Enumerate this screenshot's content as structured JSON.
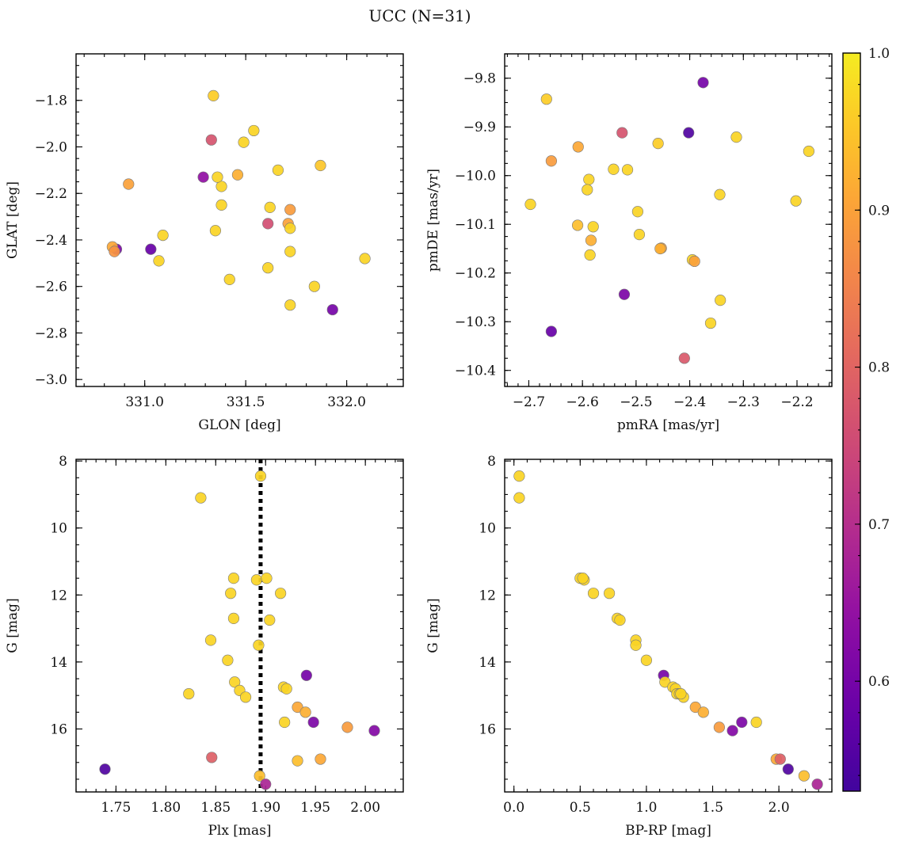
{
  "figure": {
    "title": "UCC (N=31)"
  },
  "chart_data": [
    {
      "type": "scatter",
      "xlabel": "GLON [deg]",
      "ylabel": "GLAT [deg]",
      "xlim": [
        330.66,
        332.28
      ],
      "ylim": [
        -3.03,
        -1.6
      ],
      "xticks": [
        331.0,
        331.5,
        332.0
      ],
      "xticklabels": [
        "331.0",
        "331.5",
        "332.0"
      ],
      "yticks": [
        -3.0,
        -2.8,
        -2.6,
        -2.4,
        -2.2,
        -2.0,
        -1.8
      ],
      "yticklabels": [
        "−3.0",
        "−2.8",
        "−2.6",
        "−2.4",
        "−2.2",
        "−2.0",
        "−1.8"
      ],
      "x": [
        331.34,
        331.33,
        331.54,
        331.49,
        331.29,
        331.38,
        331.36,
        331.46,
        330.92,
        331.38,
        331.66,
        331.72,
        331.62,
        331.71,
        331.87,
        332.09,
        331.61,
        331.35,
        331.72,
        331.84,
        331.09,
        331.03,
        330.86,
        330.84,
        330.85,
        331.07,
        331.72,
        331.61,
        331.42,
        331.72,
        331.93
      ],
      "y": [
        -1.78,
        -1.97,
        -1.93,
        -1.98,
        -2.13,
        -2.17,
        -2.13,
        -2.12,
        -2.16,
        -2.25,
        -2.1,
        -2.27,
        -2.26,
        -2.33,
        -2.08,
        -2.48,
        -2.33,
        -2.36,
        -2.35,
        -2.6,
        -2.38,
        -2.44,
        -2.44,
        -2.43,
        -2.45,
        -2.49,
        -2.45,
        -2.52,
        -2.57,
        -2.68,
        -2.7
      ],
      "c": [
        0.96,
        0.77,
        0.97,
        0.97,
        0.64,
        0.97,
        0.97,
        0.92,
        0.9,
        0.97,
        0.97,
        0.89,
        0.97,
        0.9,
        0.95,
        0.97,
        0.76,
        0.97,
        0.97,
        0.97,
        0.97,
        0.58,
        0.61,
        0.91,
        0.88,
        0.97,
        0.97,
        0.97,
        0.97,
        0.97,
        0.6
      ],
      "colorbar": {
        "label": "",
        "range": [
          0.53,
          1.0
        ]
      }
    },
    {
      "type": "scatter",
      "xlabel": "pmRA [mas/yr]",
      "ylabel": "pmDE [mas/yr]",
      "xlim": [
        -2.745,
        -2.135
      ],
      "ylim": [
        -10.433,
        -9.75
      ],
      "xticks": [
        -2.7,
        -2.6,
        -2.5,
        -2.4,
        -2.3,
        -2.2
      ],
      "xticklabels": [
        "−2.7",
        "−2.6",
        "−2.5",
        "−2.4",
        "−2.3",
        "−2.2"
      ],
      "yticks": [
        -10.4,
        -10.3,
        -10.2,
        -10.1,
        -10.0,
        -9.9,
        -9.8
      ],
      "yticklabels": [
        "−10.4",
        "−10.3",
        "−10.2",
        "−10.1",
        "−10.0",
        "−9.9",
        "−9.8"
      ],
      "x": [
        -2.667,
        -2.526,
        -2.402,
        -2.375,
        -2.459,
        -2.313,
        -2.178,
        -2.608,
        -2.658,
        -2.542,
        -2.516,
        -2.588,
        -2.591,
        -2.344,
        -2.202,
        -2.697,
        -2.609,
        -2.58,
        -2.497,
        -2.494,
        -2.584,
        -2.453,
        -2.455,
        -2.395,
        -2.391,
        -2.586,
        -2.522,
        -2.343,
        -2.361,
        -2.658,
        -2.41
      ],
      "y": [
        -9.843,
        -9.912,
        -9.912,
        -9.809,
        -9.934,
        -9.921,
        -9.95,
        -9.941,
        -9.97,
        -9.987,
        -9.988,
        -10.008,
        -10.029,
        -10.039,
        -10.052,
        -10.059,
        -10.102,
        -10.105,
        -10.074,
        -10.121,
        -10.133,
        -10.149,
        -10.15,
        -10.173,
        -10.176,
        -10.163,
        -10.244,
        -10.256,
        -10.303,
        -10.32,
        -10.375
      ],
      "c": [
        0.96,
        0.77,
        0.55,
        0.6,
        0.96,
        0.97,
        0.97,
        0.91,
        0.89,
        0.97,
        0.97,
        0.97,
        0.97,
        0.97,
        0.97,
        0.97,
        0.94,
        0.97,
        0.97,
        0.97,
        0.92,
        0.9,
        0.92,
        0.97,
        0.9,
        0.97,
        0.61,
        0.97,
        0.97,
        0.58,
        0.78
      ],
      "colorbar": {
        "label": "",
        "range": [
          0.53,
          1.0
        ]
      }
    },
    {
      "type": "scatter",
      "xlabel": "Plx [mas]",
      "ylabel": "G [mag]",
      "xlim": [
        1.71,
        2.038
      ],
      "ylim": [
        17.88,
        7.95
      ],
      "xticks": [
        1.75,
        1.8,
        1.85,
        1.9,
        1.95,
        2.0
      ],
      "xticklabels": [
        "1.75",
        "1.80",
        "1.85",
        "1.90",
        "1.95",
        "2.00"
      ],
      "yticks": [
        8,
        10,
        12,
        14,
        16
      ],
      "yticklabels": [
        "8",
        "10",
        "12",
        "14",
        "16"
      ],
      "vline": {
        "x": 1.895,
        "style": "dotted"
      },
      "x": [
        1.895,
        1.835,
        1.868,
        1.891,
        1.901,
        1.865,
        1.915,
        1.868,
        1.904,
        1.845,
        1.893,
        1.862,
        1.941,
        1.869,
        1.918,
        1.921,
        1.874,
        1.88,
        1.823,
        1.932,
        1.94,
        1.919,
        1.948,
        1.982,
        2.009,
        1.739,
        1.846,
        1.955,
        1.932,
        1.894,
        1.9
      ],
      "y": [
        8.45,
        9.1,
        11.5,
        11.55,
        11.5,
        11.95,
        11.95,
        12.7,
        12.75,
        13.35,
        13.5,
        13.95,
        14.4,
        14.6,
        14.75,
        14.8,
        14.85,
        15.05,
        14.95,
        15.35,
        15.5,
        15.8,
        15.8,
        15.95,
        16.05,
        17.2,
        16.85,
        16.9,
        16.95,
        17.4,
        17.65
      ],
      "c": [
        0.97,
        0.97,
        0.97,
        0.97,
        0.97,
        0.97,
        0.97,
        0.97,
        0.97,
        0.97,
        0.97,
        0.97,
        0.6,
        0.97,
        0.97,
        0.97,
        0.97,
        0.97,
        0.97,
        0.91,
        0.92,
        0.97,
        0.61,
        0.89,
        0.62,
        0.55,
        0.79,
        0.91,
        0.94,
        0.94,
        0.68
      ],
      "colorbar": {
        "label": "",
        "range": [
          0.53,
          1.0
        ]
      }
    },
    {
      "type": "scatter",
      "xlabel": "BP-RP [mag]",
      "ylabel": "G [mag]",
      "xlim": [
        -0.07,
        2.4
      ],
      "ylim": [
        17.88,
        7.95
      ],
      "xticks": [
        0.0,
        0.5,
        1.0,
        1.5,
        2.0
      ],
      "xticklabels": [
        "0.0",
        "0.5",
        "1.0",
        "1.5",
        "2.0"
      ],
      "yticks": [
        8,
        10,
        12,
        14,
        16
      ],
      "yticklabels": [
        "8",
        "10",
        "12",
        "14",
        "16"
      ],
      "x": [
        0.04,
        0.04,
        0.5,
        0.53,
        0.6,
        0.72,
        0.78,
        0.8,
        0.92,
        0.92,
        1.0,
        1.13,
        1.14,
        1.2,
        1.22,
        1.23,
        1.25,
        1.28,
        1.37,
        1.43,
        1.55,
        1.65,
        1.72,
        1.83,
        1.98,
        2.01,
        2.07,
        2.19,
        2.29,
        0.52,
        1.26
      ],
      "y": [
        8.45,
        9.1,
        11.5,
        11.55,
        11.95,
        11.95,
        12.7,
        12.75,
        13.35,
        13.5,
        13.95,
        14.4,
        14.6,
        14.75,
        14.8,
        14.95,
        14.95,
        15.05,
        15.35,
        15.5,
        15.95,
        16.05,
        15.8,
        15.8,
        16.9,
        16.9,
        17.2,
        17.4,
        17.65,
        11.5,
        14.95
      ],
      "c": [
        0.97,
        0.97,
        0.97,
        0.97,
        0.97,
        0.97,
        0.97,
        0.97,
        0.97,
        0.97,
        0.97,
        0.6,
        0.97,
        0.97,
        0.97,
        0.97,
        0.97,
        0.97,
        0.91,
        0.92,
        0.89,
        0.62,
        0.61,
        0.97,
        0.91,
        0.79,
        0.55,
        0.94,
        0.68,
        0.97,
        0.97
      ],
      "colorbar": {
        "label": "",
        "range": [
          0.53,
          1.0
        ]
      }
    }
  ],
  "colorbar": {
    "range": [
      0.53,
      1.0
    ],
    "ticks": [
      0.6,
      0.7,
      0.8,
      0.9,
      1.0
    ],
    "ticklabels": [
      "0.6",
      "0.7",
      "0.8",
      "0.9",
      "1.0"
    ],
    "colormap": "plasma"
  }
}
